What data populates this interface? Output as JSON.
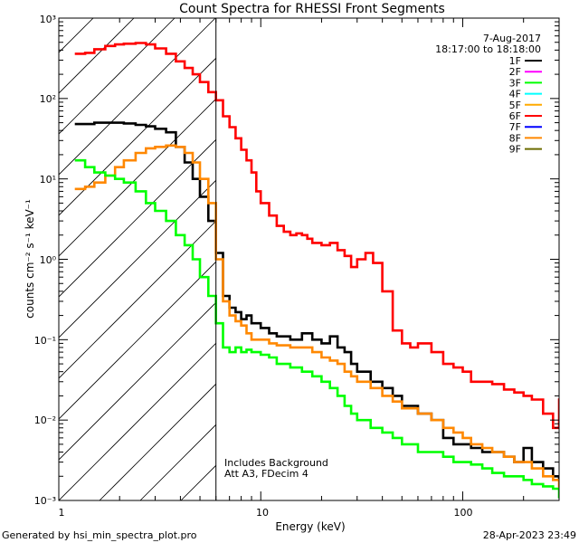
{
  "chart_data": {
    "type": "line",
    "title": "Count Spectra for RHESSI Front Segments",
    "xlabel": "Energy (keV)",
    "ylabel": "counts cm⁻² s⁻¹ keV⁻¹",
    "xscale": "log",
    "yscale": "log",
    "xlim": [
      1,
      300
    ],
    "ylim": [
      0.001,
      1000
    ],
    "x_tick_labels": [
      "1",
      "10",
      "100"
    ],
    "y_tick_labels": [
      "10⁻³",
      "10⁻²",
      "10⁻¹",
      "10⁰",
      "10¹",
      "10²",
      "10³"
    ],
    "date": "7-Aug-2017",
    "time_range": "18:17:00 to 18:18:00",
    "annotations": [
      "Includes Background",
      "Att A3, FDecim  4"
    ],
    "hatched_region_xmax_kev": 6,
    "legend": [
      {
        "name": "1F",
        "color": "#000000"
      },
      {
        "name": "2F",
        "color": "#ff00ff"
      },
      {
        "name": "3F",
        "color": "#00ff00"
      },
      {
        "name": "4F",
        "color": "#00ffff"
      },
      {
        "name": "5F",
        "color": "#ffaa00"
      },
      {
        "name": "6F",
        "color": "#ff0000"
      },
      {
        "name": "7F",
        "color": "#0000ff"
      },
      {
        "name": "8F",
        "color": "#ff8800"
      },
      {
        "name": "9F",
        "color": "#6b6b00"
      }
    ],
    "series": [
      {
        "name": "6F",
        "color": "#ff0000",
        "x": [
          1.2,
          1.35,
          1.5,
          1.7,
          1.9,
          2.1,
          2.4,
          2.7,
          3.0,
          3.4,
          3.8,
          4.2,
          4.6,
          5.0,
          5.5,
          6.0,
          6.5,
          7.0,
          7.5,
          8.0,
          8.5,
          9.0,
          9.5,
          10,
          11,
          12,
          13,
          14,
          15,
          16,
          17,
          18,
          20,
          22,
          24,
          26,
          28,
          30,
          33,
          36,
          40,
          45,
          50,
          55,
          60,
          70,
          80,
          90,
          100,
          110,
          125,
          140,
          160,
          180,
          200,
          220,
          250,
          280,
          300
        ],
        "values": [
          360,
          370,
          410,
          450,
          470,
          480,
          490,
          470,
          420,
          360,
          290,
          240,
          200,
          160,
          120,
          95,
          60,
          44,
          32,
          23,
          17,
          12,
          7,
          5,
          3.5,
          2.6,
          2.2,
          2.0,
          2.1,
          2.0,
          1.8,
          1.6,
          1.5,
          1.6,
          1.3,
          1.1,
          0.8,
          1.0,
          1.2,
          0.9,
          0.4,
          0.13,
          0.09,
          0.08,
          0.09,
          0.07,
          0.05,
          0.045,
          0.04,
          0.03,
          0.03,
          0.028,
          0.024,
          0.022,
          0.02,
          0.018,
          0.012,
          0.008,
          0.018
        ]
      },
      {
        "name": "1F",
        "color": "#000000",
        "x": [
          1.2,
          1.35,
          1.5,
          1.7,
          1.9,
          2.1,
          2.4,
          2.7,
          3.0,
          3.4,
          3.8,
          4.2,
          4.6,
          5.0,
          5.5,
          6.0,
          6.5,
          7.0,
          7.5,
          8.0,
          8.5,
          9.0,
          10,
          11,
          12,
          14,
          16,
          18,
          20,
          22,
          24,
          26,
          28,
          30,
          35,
          40,
          45,
          50,
          60,
          70,
          80,
          90,
          100,
          110,
          125,
          140,
          160,
          180,
          200,
          220,
          250,
          280,
          300
        ],
        "values": [
          48,
          48,
          50,
          50,
          50,
          49,
          47,
          45,
          42,
          38,
          25,
          16,
          10,
          6,
          3,
          1.2,
          0.35,
          0.25,
          0.22,
          0.18,
          0.2,
          0.16,
          0.14,
          0.12,
          0.11,
          0.1,
          0.12,
          0.1,
          0.09,
          0.11,
          0.08,
          0.07,
          0.05,
          0.04,
          0.03,
          0.025,
          0.02,
          0.015,
          0.012,
          0.01,
          0.006,
          0.005,
          0.005,
          0.0045,
          0.004,
          0.004,
          0.0035,
          0.003,
          0.0045,
          0.003,
          0.0025,
          0.002,
          0.0018
        ]
      },
      {
        "name": "8F",
        "color": "#ff8800",
        "x": [
          1.2,
          1.35,
          1.5,
          1.7,
          1.9,
          2.1,
          2.4,
          2.7,
          3.0,
          3.4,
          3.8,
          4.2,
          4.6,
          5.0,
          5.5,
          6.0,
          6.5,
          7.0,
          7.5,
          8.0,
          8.5,
          9.0,
          10,
          11,
          12,
          14,
          16,
          18,
          20,
          22,
          24,
          26,
          28,
          30,
          35,
          40,
          45,
          50,
          60,
          70,
          80,
          90,
          100,
          110,
          125,
          140,
          160,
          180,
          200,
          220,
          250,
          280,
          300
        ],
        "values": [
          7.5,
          8,
          9,
          11,
          14,
          17,
          21,
          24,
          25,
          26,
          25,
          21,
          16,
          10,
          5,
          1.0,
          0.3,
          0.2,
          0.17,
          0.15,
          0.12,
          0.1,
          0.1,
          0.09,
          0.085,
          0.08,
          0.08,
          0.07,
          0.06,
          0.055,
          0.05,
          0.04,
          0.035,
          0.03,
          0.025,
          0.02,
          0.017,
          0.014,
          0.012,
          0.01,
          0.008,
          0.007,
          0.006,
          0.005,
          0.0045,
          0.004,
          0.0035,
          0.003,
          0.003,
          0.0025,
          0.002,
          0.0018,
          0.0015
        ]
      },
      {
        "name": "3F",
        "color": "#00ff00",
        "x": [
          1.2,
          1.35,
          1.5,
          1.7,
          1.9,
          2.1,
          2.4,
          2.7,
          3.0,
          3.4,
          3.8,
          4.2,
          4.6,
          5.0,
          5.5,
          6.0,
          6.5,
          7.0,
          7.5,
          8.0,
          8.5,
          9.0,
          10,
          11,
          12,
          14,
          16,
          18,
          20,
          22,
          24,
          26,
          28,
          30,
          35,
          40,
          45,
          50,
          60,
          70,
          80,
          90,
          100,
          110,
          125,
          140,
          160,
          180,
          200,
          220,
          250,
          280,
          300
        ],
        "values": [
          17,
          14,
          12,
          11,
          10,
          9,
          7,
          5,
          4,
          3,
          2,
          1.5,
          1,
          0.6,
          0.35,
          0.16,
          0.08,
          0.07,
          0.08,
          0.07,
          0.075,
          0.07,
          0.065,
          0.06,
          0.05,
          0.045,
          0.04,
          0.035,
          0.03,
          0.025,
          0.02,
          0.015,
          0.012,
          0.01,
          0.008,
          0.007,
          0.006,
          0.005,
          0.004,
          0.004,
          0.0035,
          0.003,
          0.003,
          0.0028,
          0.0025,
          0.0022,
          0.002,
          0.002,
          0.0018,
          0.0016,
          0.0015,
          0.0014,
          0.0011
        ]
      }
    ]
  },
  "footer": {
    "generated_by": "Generated by hsi_min_spectra_plot.pro",
    "timestamp": "28-Apr-2023 23:49"
  }
}
